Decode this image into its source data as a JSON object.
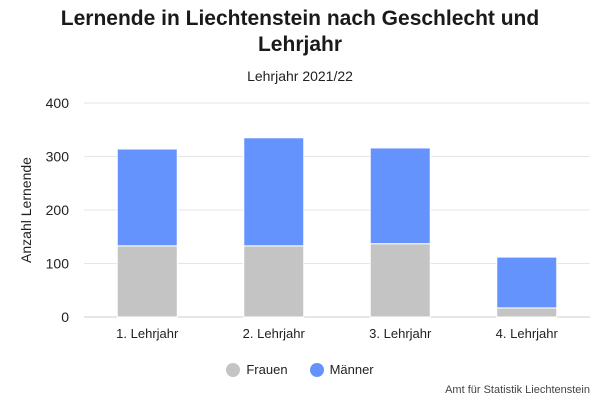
{
  "chart_data": {
    "type": "bar",
    "stacked": true,
    "title": "Lernende in Liechtenstein nach Geschlecht und Lehrjahr",
    "subtitle": "Lehrjahr 2021/22",
    "xlabel": "",
    "ylabel": "Anzahl Lernende",
    "ylim": [
      0,
      400
    ],
    "yticks": [
      0,
      100,
      200,
      300,
      400
    ],
    "grid": true,
    "legend_position": "bottom",
    "categories": [
      "1. Lehrjahr",
      "2. Lehrjahr",
      "3. Lehrjahr",
      "4. Lehrjahr"
    ],
    "series": [
      {
        "name": "Frauen",
        "color": "#c4c4c4",
        "values": [
          133,
          133,
          137,
          17
        ]
      },
      {
        "name": "Männer",
        "color": "#6593fd",
        "values": [
          181,
          202,
          179,
          95
        ]
      }
    ]
  },
  "credit": "Amt für Statistik Liechtenstein"
}
